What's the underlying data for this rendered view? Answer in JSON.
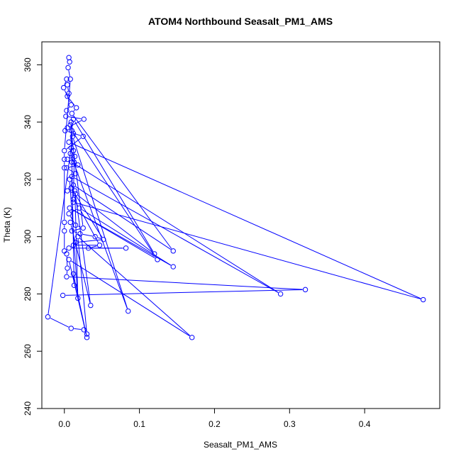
{
  "chart_data": {
    "type": "line",
    "title": "ATOM4 Northbound Seasalt_PM1_AMS",
    "xlabel": "Seasalt_PM1_AMS",
    "ylabel": "Theta (K)",
    "xlim": [
      -0.03,
      0.5
    ],
    "ylim": [
      240,
      368
    ],
    "x_ticks": [
      0.0,
      0.1,
      0.2,
      0.3,
      0.4
    ],
    "x_tick_labels": [
      "0.0",
      "0.1",
      "0.2",
      "0.3",
      "0.4"
    ],
    "y_ticks": [
      240,
      260,
      280,
      300,
      320,
      340,
      360
    ],
    "y_tick_labels": [
      "240",
      "260",
      "280",
      "300",
      "320",
      "340",
      "360"
    ],
    "grid": false,
    "line_color": "#0000ff",
    "markers": "open-circle",
    "series": [
      {
        "points": [
          [
            0.006,
            362.5
          ],
          [
            0.007,
            361
          ],
          [
            0.005,
            359
          ],
          [
            0.008,
            355
          ],
          [
            0.003,
            355
          ],
          [
            0.004,
            353
          ],
          [
            0.006,
            350
          ],
          [
            -0.001,
            352
          ],
          [
            0.004,
            349
          ],
          [
            0.009,
            346
          ],
          [
            0.016,
            345
          ],
          [
            0.003,
            344
          ],
          [
            0.01,
            343
          ],
          [
            0.002,
            342
          ],
          [
            0.012,
            341
          ],
          [
            0.026,
            341
          ],
          [
            0.008,
            339
          ],
          [
            0.004,
            338
          ],
          [
            0.01,
            337
          ],
          [
            0.001,
            337
          ],
          [
            0.012,
            336
          ],
          [
            0.025,
            335
          ],
          [
            0.006,
            333
          ],
          [
            0.009,
            331
          ],
          [
            0.012,
            330
          ],
          [
            0.0,
            330
          ],
          [
            0.008,
            329
          ],
          [
            0.014,
            328
          ],
          [
            0.004,
            327
          ],
          [
            0.0,
            327
          ],
          [
            0.01,
            326
          ],
          [
            0.018,
            325
          ],
          [
            0.003,
            324
          ],
          [
            0.0,
            324
          ],
          [
            0.015,
            322
          ],
          [
            0.007,
            320
          ],
          [
            0.012,
            318
          ],
          [
            0.009,
            317
          ],
          [
            0.004,
            316
          ],
          [
            0.015,
            315
          ],
          [
            0.012,
            313
          ],
          [
            0.02,
            310
          ],
          [
            0.006,
            308
          ],
          [
            0.0,
            305
          ],
          [
            0.015,
            304
          ],
          [
            0.025,
            303
          ],
          [
            0.01,
            302
          ],
          [
            0.0,
            302
          ],
          [
            0.021,
            301
          ],
          [
            0.041,
            300
          ],
          [
            0.052,
            299
          ],
          [
            0.015,
            298
          ],
          [
            0.012,
            297
          ],
          [
            0.047,
            297
          ],
          [
            0.032,
            296
          ],
          [
            0.082,
            296
          ],
          [
            0.006,
            296
          ],
          [
            0.0,
            295
          ],
          [
            0.145,
            295
          ],
          [
            0.003,
            294
          ],
          [
            0.12,
            294
          ],
          [
            0.124,
            292
          ],
          [
            0.145,
            289.5
          ],
          [
            0.004,
            289
          ],
          [
            0.012,
            287
          ],
          [
            0.003,
            286
          ],
          [
            0.013,
            283
          ],
          [
            0.288,
            280
          ],
          [
            0.321,
            281.5
          ],
          [
            -0.002,
            279.5
          ],
          [
            0.478,
            278
          ],
          [
            0.018,
            278.5
          ],
          [
            0.035,
            276
          ],
          [
            0.085,
            274
          ],
          [
            -0.022,
            272
          ],
          [
            0.009,
            268
          ],
          [
            0.026,
            267.5
          ],
          [
            0.03,
            266
          ],
          [
            0.17,
            264.8
          ],
          [
            0.03,
            264.8
          ],
          [
            0.012,
            312
          ],
          [
            0.008,
            305
          ],
          [
            0.018,
            300
          ],
          [
            0.006,
            292
          ],
          [
            0.01,
            321
          ],
          [
            0.014,
            316
          ],
          [
            0.007,
            310
          ],
          [
            0.011,
            335
          ],
          [
            0.009,
            340
          ],
          [
            0.013,
            326
          ]
        ],
        "segments": [
          [
            0,
            1
          ],
          [
            1,
            2
          ],
          [
            2,
            3
          ],
          [
            3,
            5
          ],
          [
            5,
            6
          ],
          [
            6,
            8
          ],
          [
            8,
            10
          ],
          [
            10,
            12
          ],
          [
            12,
            14
          ],
          [
            14,
            16
          ],
          [
            16,
            18
          ],
          [
            18,
            20
          ],
          [
            20,
            22
          ],
          [
            22,
            23
          ],
          [
            23,
            24
          ],
          [
            24,
            26
          ],
          [
            26,
            27
          ],
          [
            27,
            28
          ],
          [
            28,
            30
          ],
          [
            30,
            31
          ],
          [
            31,
            32
          ],
          [
            32,
            34
          ],
          [
            34,
            35
          ],
          [
            35,
            36
          ],
          [
            36,
            37
          ],
          [
            37,
            38
          ],
          [
            38,
            39
          ],
          [
            39,
            40
          ],
          [
            40,
            41
          ],
          [
            41,
            42
          ],
          [
            42,
            44
          ],
          [
            44,
            45
          ],
          [
            45,
            46
          ],
          [
            46,
            48
          ],
          [
            48,
            49
          ],
          [
            49,
            50
          ],
          [
            50,
            51
          ],
          [
            51,
            52
          ],
          [
            52,
            53
          ],
          [
            53,
            54
          ],
          [
            54,
            55
          ],
          [
            55,
            56
          ],
          [
            4,
            7
          ],
          [
            7,
            9
          ],
          [
            9,
            11
          ],
          [
            11,
            13
          ],
          [
            13,
            15
          ],
          [
            15,
            17
          ],
          [
            17,
            19
          ],
          [
            19,
            21
          ],
          [
            21,
            25
          ],
          [
            25,
            29
          ],
          [
            29,
            33
          ],
          [
            33,
            43
          ],
          [
            43,
            47
          ],
          [
            47,
            57
          ],
          [
            57,
            59
          ],
          [
            59,
            63
          ],
          [
            63,
            65
          ],
          [
            65,
            68
          ],
          [
            68,
            69
          ],
          [
            12,
            58
          ],
          [
            58,
            36
          ],
          [
            14,
            60
          ],
          [
            60,
            39
          ],
          [
            18,
            61
          ],
          [
            61,
            86
          ],
          [
            86,
            62
          ],
          [
            62,
            41
          ],
          [
            30,
            67
          ],
          [
            67,
            84
          ],
          [
            22,
            70
          ],
          [
            70,
            80
          ],
          [
            35,
            71
          ],
          [
            71,
            85
          ],
          [
            85,
            72
          ],
          [
            72,
            81
          ],
          [
            26,
            73
          ],
          [
            73,
            87
          ],
          [
            87,
            74
          ],
          [
            74,
            75
          ],
          [
            75,
            76
          ],
          [
            76,
            77
          ],
          [
            77,
            82
          ],
          [
            82,
            78
          ],
          [
            78,
            83
          ],
          [
            83,
            79
          ],
          [
            79,
            64
          ],
          [
            64,
            66
          ],
          [
            66,
            88
          ],
          [
            88,
            20
          ],
          [
            24,
            89
          ],
          [
            89,
            40
          ],
          [
            3,
            25
          ],
          [
            16,
            45
          ],
          [
            50,
            37
          ],
          [
            53,
            41
          ]
        ]
      }
    ]
  }
}
